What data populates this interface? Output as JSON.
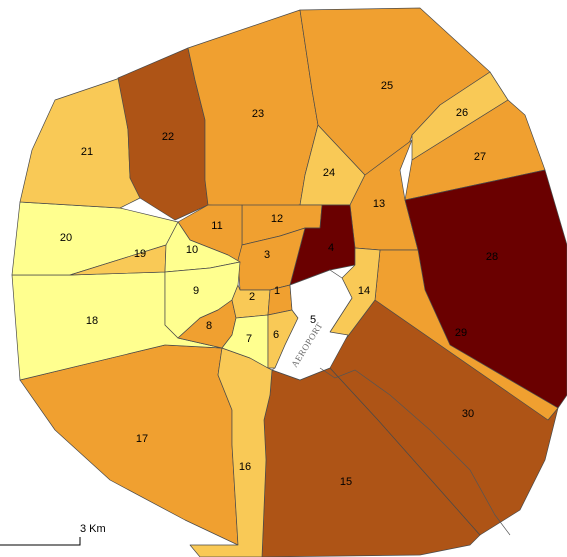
{
  "map": {
    "colors": {
      "c1": "#ffff8f",
      "c2": "#f9c956",
      "c3": "#f0a030",
      "c4": "#ae5416",
      "c5": "#6a0000",
      "airport": "#ffffff"
    },
    "districts": [
      {
        "id": "1",
        "label": "1",
        "color": "c3"
      },
      {
        "id": "2",
        "label": "2",
        "color": "c2"
      },
      {
        "id": "3",
        "label": "3",
        "color": "c3"
      },
      {
        "id": "4",
        "label": "4",
        "color": "c5"
      },
      {
        "id": "5",
        "label": "5",
        "color": "airport"
      },
      {
        "id": "6",
        "label": "6",
        "color": "c2"
      },
      {
        "id": "7",
        "label": "7",
        "color": "c1"
      },
      {
        "id": "8",
        "label": "8",
        "color": "c3"
      },
      {
        "id": "9",
        "label": "9",
        "color": "c1"
      },
      {
        "id": "10",
        "label": "10",
        "color": "c1"
      },
      {
        "id": "11",
        "label": "11",
        "color": "c3"
      },
      {
        "id": "12",
        "label": "12",
        "color": "c3"
      },
      {
        "id": "13",
        "label": "13",
        "color": "c3"
      },
      {
        "id": "14",
        "label": "14",
        "color": "c2"
      },
      {
        "id": "15",
        "label": "15",
        "color": "c4"
      },
      {
        "id": "16",
        "label": "16",
        "color": "c2"
      },
      {
        "id": "17",
        "label": "17",
        "color": "c3"
      },
      {
        "id": "18",
        "label": "18",
        "color": "c1"
      },
      {
        "id": "19",
        "label": "19",
        "color": "c2"
      },
      {
        "id": "20",
        "label": "20",
        "color": "c1"
      },
      {
        "id": "21",
        "label": "21",
        "color": "c2"
      },
      {
        "id": "22",
        "label": "22",
        "color": "c4"
      },
      {
        "id": "23",
        "label": "23",
        "color": "c3"
      },
      {
        "id": "24",
        "label": "24",
        "color": "c2"
      },
      {
        "id": "25",
        "label": "25",
        "color": "c3"
      },
      {
        "id": "26",
        "label": "26",
        "color": "c2"
      },
      {
        "id": "27",
        "label": "27",
        "color": "c3"
      },
      {
        "id": "28",
        "label": "28",
        "color": "c5"
      },
      {
        "id": "29",
        "label": "29",
        "color": "c3"
      },
      {
        "id": "30",
        "label": "30",
        "color": "c4"
      }
    ],
    "airport_label": "AEROPORT",
    "scale_bar": {
      "label": "3 Km"
    }
  }
}
